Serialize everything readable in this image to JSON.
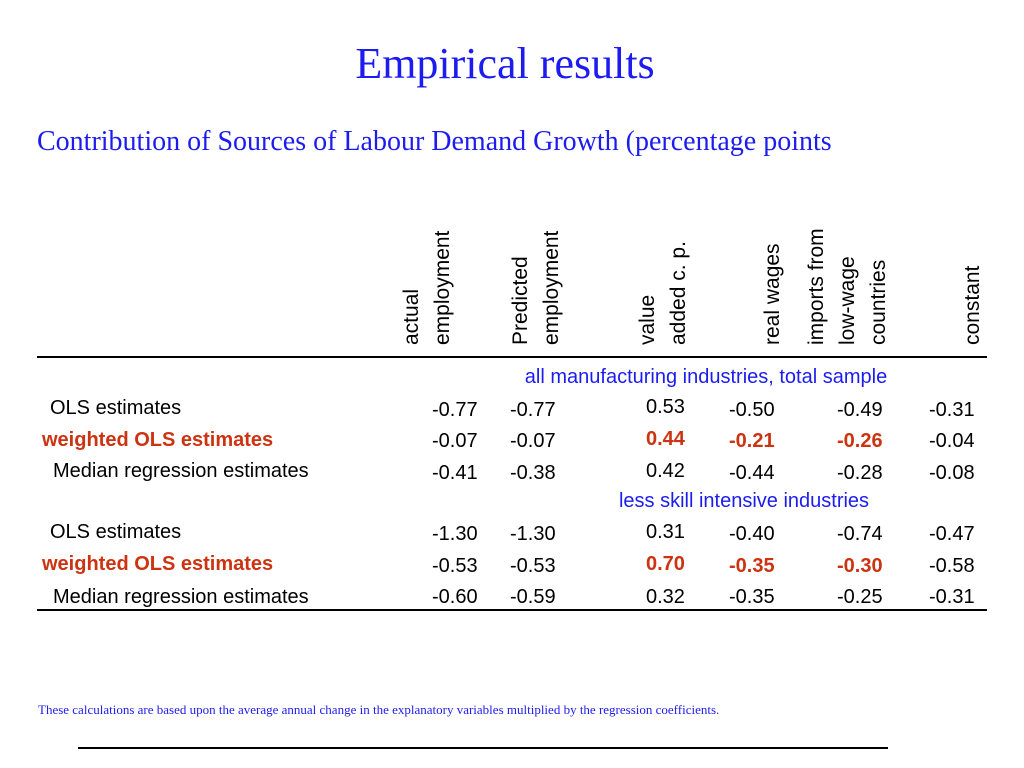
{
  "title": "Empirical results",
  "subtitle": "Contribution of Sources of Labour Demand Growth (percentage points",
  "columns": [
    {
      "line1": "actual",
      "line2": "employment"
    },
    {
      "line1": "Predicted",
      "line2": "employment"
    },
    {
      "line1": "value",
      "line2": "added c. p."
    },
    {
      "line1": "real wages",
      "line2": ""
    },
    {
      "line1": "imports from",
      "line2": "low-wage",
      "line3": "countries"
    },
    {
      "line1": "constant",
      "line2": ""
    }
  ],
  "sections": [
    {
      "heading": "all manufacturing industries, total sample",
      "rows": [
        {
          "label": "OLS estimates",
          "values": [
            "-0.77",
            "-0.77",
            "0.53",
            "-0.50",
            "-0.49",
            "-0.31"
          ]
        },
        {
          "label": "weighted OLS estimates",
          "values": [
            "-0.07",
            "-0.07",
            "0.44",
            "-0.21",
            "-0.26",
            "-0.04"
          ]
        },
        {
          "label": "Median regression estimates",
          "values": [
            "-0.41",
            "-0.38",
            "0.42",
            "-0.44",
            "-0.28",
            "-0.08"
          ]
        }
      ]
    },
    {
      "heading": "less skill intensive industries",
      "rows": [
        {
          "label": "OLS estimates",
          "values": [
            "-1.30",
            "-1.30",
            "0.31",
            "-0.40",
            "-0.74",
            "-0.47"
          ]
        },
        {
          "label": "weighted OLS estimates",
          "values": [
            "-0.53",
            "-0.53",
            "0.70",
            "-0.35",
            "-0.30",
            "-0.58"
          ]
        },
        {
          "label": "Median regression estimates",
          "values": [
            "-0.60",
            "-0.59",
            "0.32",
            "-0.35",
            "-0.25",
            "-0.31"
          ]
        }
      ]
    }
  ],
  "highlight_color": "#cc3311",
  "accent_color": "#1c1cf0",
  "footnote": "These calculations are based upon the average annual change in the explanatory variables multiplied by the regression coefficients."
}
